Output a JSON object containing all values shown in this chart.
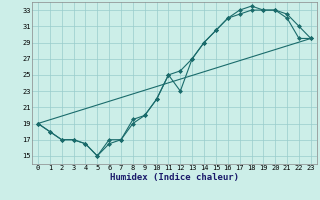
{
  "title": "",
  "xlabel": "Humidex (Indice chaleur)",
  "ylabel": "",
  "background_color": "#cceee8",
  "grid_color": "#99cccc",
  "line_color": "#1a6b6b",
  "xlim": [
    -0.5,
    23.5
  ],
  "ylim": [
    14,
    34
  ],
  "xticks": [
    0,
    1,
    2,
    3,
    4,
    5,
    6,
    7,
    8,
    9,
    10,
    11,
    12,
    13,
    14,
    15,
    16,
    17,
    18,
    19,
    20,
    21,
    22,
    23
  ],
  "yticks": [
    15,
    17,
    19,
    21,
    23,
    25,
    27,
    29,
    31,
    33
  ],
  "series1_x": [
    0,
    1,
    2,
    3,
    4,
    5,
    6,
    7,
    8,
    9,
    10,
    11,
    12,
    13,
    14,
    15,
    16,
    17,
    18,
    19,
    20,
    21,
    22,
    23
  ],
  "series1_y": [
    19,
    18,
    17,
    17,
    16.5,
    15,
    17,
    17,
    19.5,
    20,
    22,
    25,
    25.5,
    27,
    29,
    30.5,
    32,
    32.5,
    33,
    33,
    33,
    32,
    29.5,
    29.5
  ],
  "series2_x": [
    0,
    1,
    2,
    3,
    4,
    5,
    6,
    7,
    8,
    9,
    10,
    11,
    12,
    13,
    14,
    15,
    16,
    17,
    18,
    19,
    20,
    21,
    22,
    23
  ],
  "series2_y": [
    19,
    18,
    17,
    17,
    16.5,
    15,
    16.5,
    17,
    19,
    20,
    22,
    25,
    23,
    27,
    29,
    30.5,
    32,
    33,
    33.5,
    33,
    33,
    32.5,
    31,
    29.5
  ],
  "series3_x": [
    0,
    23
  ],
  "series3_y": [
    19,
    29.5
  ],
  "fontsize_label": 6.5,
  "fontsize_tick": 5.0,
  "marker": "D",
  "markersize": 2.0,
  "linewidth": 0.8
}
